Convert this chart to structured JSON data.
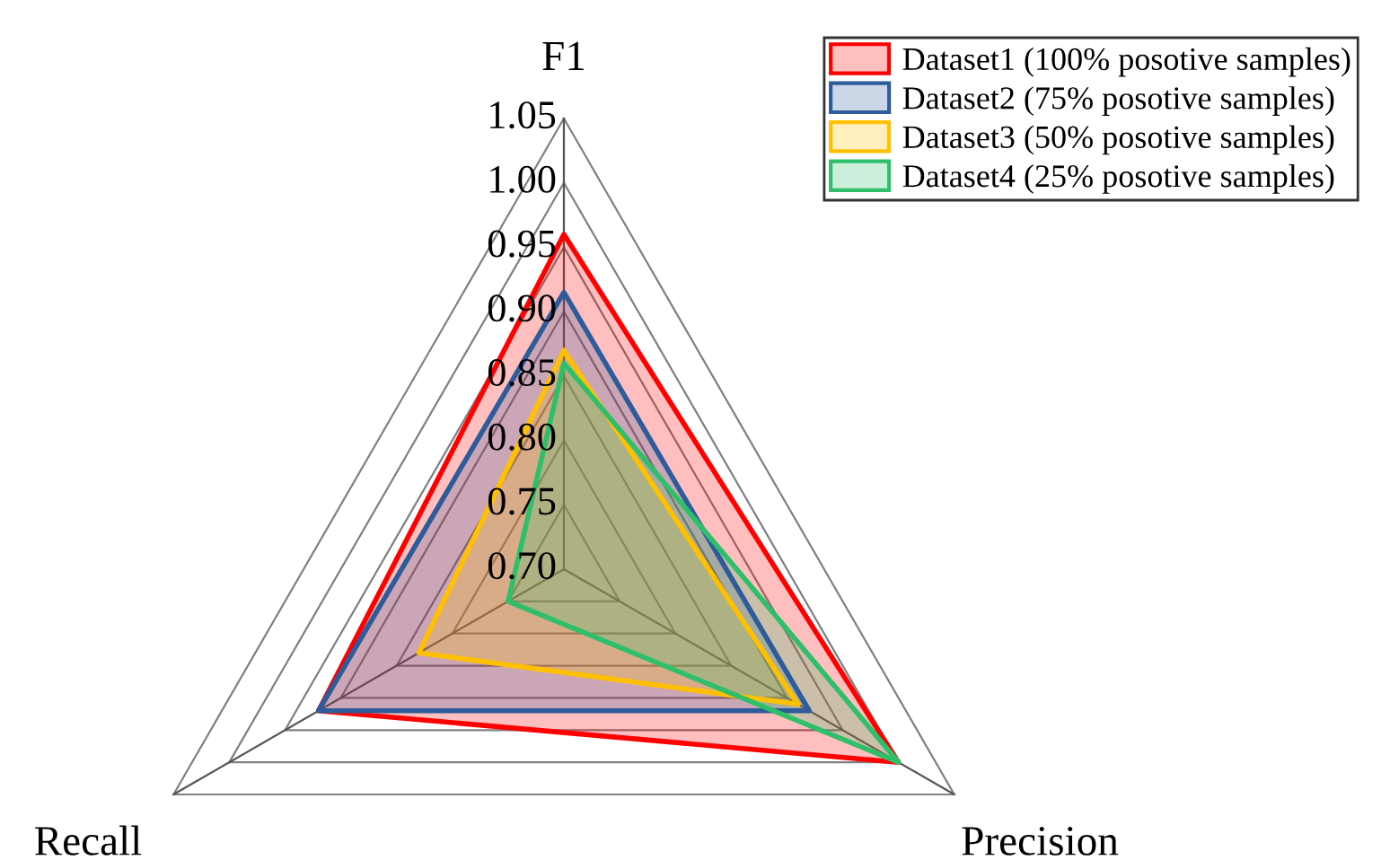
{
  "chart_data": {
    "type": "radar",
    "categories": [
      "F1",
      "Precision",
      "Recall"
    ],
    "series": [
      {
        "name": "Dataset1 (100% posotive samples)",
        "color": "#ff0000",
        "values": [
          0.96,
          1.0,
          0.92
        ]
      },
      {
        "name": "Dataset2 (75% posotive samples)",
        "color": "#2e5c9a",
        "values": [
          0.915,
          0.92,
          0.92
        ]
      },
      {
        "name": "Dataset3 (50% posotive samples)",
        "color": "#ffc000",
        "values": [
          0.87,
          0.91,
          0.83
        ]
      },
      {
        "name": "Dataset4 (25% posotive samples)",
        "color": "#2fbf6a",
        "values": [
          0.86,
          1.0,
          0.75
        ]
      }
    ],
    "ylim": [
      0.7,
      1.05
    ],
    "yticks": [
      {
        "value": 0.7,
        "label": "0.70"
      },
      {
        "value": 0.75,
        "label": "0.75"
      },
      {
        "value": 0.8,
        "label": "0.80"
      },
      {
        "value": 0.85,
        "label": "0.85"
      },
      {
        "value": 0.9,
        "label": "0.90"
      },
      {
        "value": 0.95,
        "label": "0.95"
      },
      {
        "value": 1.0,
        "label": "1.00"
      },
      1.05
    ],
    "legend": "top right"
  }
}
